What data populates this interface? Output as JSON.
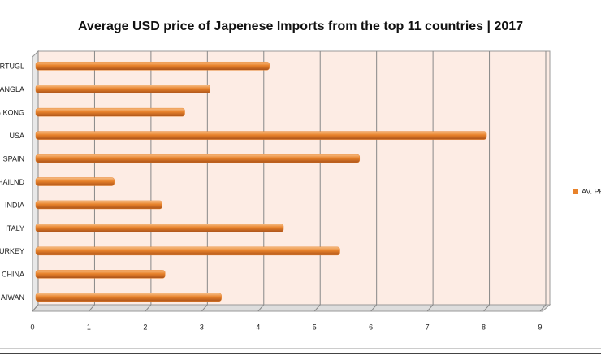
{
  "chart_data": {
    "type": "hbar",
    "title": "Average USD price of Japenese Imports from the top 11 countries | 2017",
    "categories": [
      "ORTUGL",
      "ANGLA",
      "G KONG",
      "USA",
      "SPAIN",
      "HAILND",
      "INDIA",
      "ITALY",
      "TURKEY",
      "CHINA",
      "AIWAN"
    ],
    "series": [
      {
        "name": "AV. PR",
        "color": "#e8822a",
        "values": [
          4.2,
          3.15,
          2.7,
          8.05,
          5.8,
          1.45,
          2.3,
          4.45,
          5.45,
          2.35,
          3.35
        ]
      }
    ],
    "xlim": [
      0,
      9
    ],
    "xticks": [
      0,
      1,
      2,
      3,
      4,
      5,
      6,
      7,
      8,
      9
    ],
    "grid": true,
    "legend": "right"
  }
}
